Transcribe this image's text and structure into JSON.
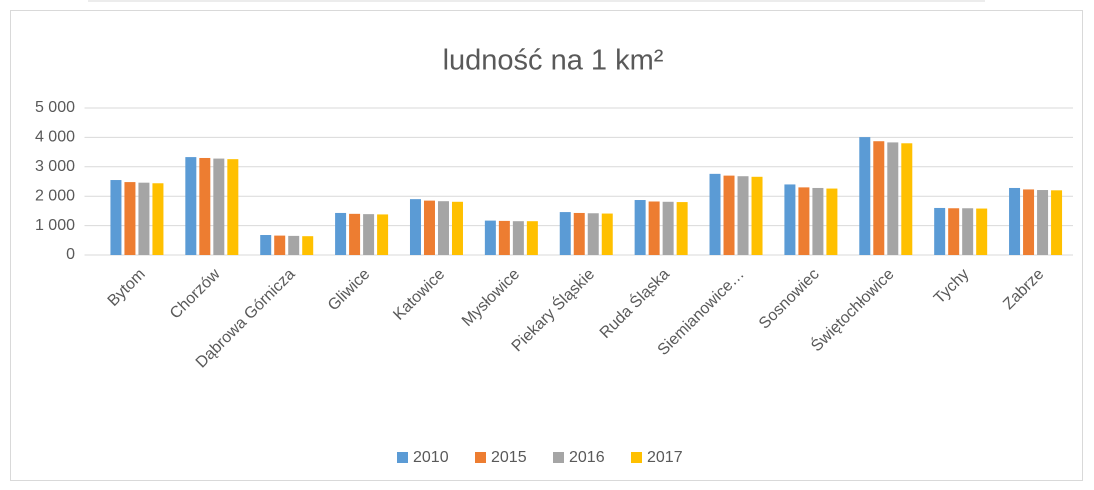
{
  "chart_data": {
    "type": "bar",
    "title": "ludność na 1 km²",
    "categories": [
      "Bytom",
      "Chorzów",
      "Dąbrowa Górnicza",
      "Gliwice",
      "Katowice",
      "Mysłowice",
      "Piekary Śląskie",
      "Ruda Śląska",
      "Siemianowice…",
      "Sosnowiec",
      "Świętochłowice",
      "Tychy",
      "Zabrze"
    ],
    "series": [
      {
        "name": "2010",
        "color": "#5b9bd5",
        "values": [
          2550,
          3330,
          680,
          1430,
          1900,
          1170,
          1460,
          1870,
          2760,
          2400,
          4010,
          1600,
          2280
        ]
      },
      {
        "name": "2015",
        "color": "#ed7d31",
        "values": [
          2480,
          3300,
          660,
          1400,
          1850,
          1160,
          1430,
          1820,
          2700,
          2300,
          3870,
          1590,
          2230
        ]
      },
      {
        "name": "2016",
        "color": "#a5a5a5",
        "values": [
          2460,
          3280,
          650,
          1390,
          1830,
          1150,
          1420,
          1810,
          2680,
          2280,
          3830,
          1590,
          2210
        ]
      },
      {
        "name": "2017",
        "color": "#ffc000",
        "values": [
          2440,
          3260,
          640,
          1380,
          1810,
          1150,
          1410,
          1800,
          2660,
          2260,
          3800,
          1580,
          2200
        ]
      }
    ],
    "ylim": [
      0,
      5000
    ],
    "yticks": [
      0,
      {
        "value": 1000,
        "label": "1 000"
      },
      {
        "value": 2000,
        "label": "2 000"
      },
      {
        "value": 3000,
        "label": "3 000"
      },
      {
        "value": 4000,
        "label": "4 000"
      },
      {
        "value": 5000,
        "label": "5 000"
      }
    ],
    "grid": true,
    "legend": "bottom"
  }
}
